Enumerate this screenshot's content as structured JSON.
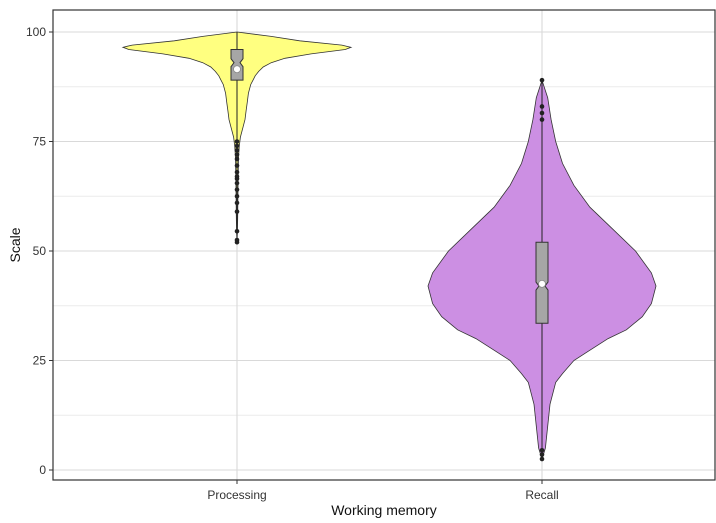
{
  "chart_data": {
    "type": "violin",
    "xlabel": "Working memory",
    "ylabel": "Scale",
    "ylim": [
      0,
      100
    ],
    "y_ticks": [
      "0",
      "25",
      "50",
      "75",
      "100"
    ],
    "grid": true,
    "categories": [
      "Processing",
      "Recall"
    ],
    "series": [
      {
        "category": "Processing",
        "fill_color": "#ffff80",
        "min": 52,
        "max": 100,
        "q1": 89,
        "median": 93,
        "q3": 96,
        "mean": 91.5,
        "outliers": [
          52,
          52.5,
          54.5,
          59,
          61,
          62.5,
          64,
          65.5,
          66.5,
          67,
          68,
          69.5,
          71,
          72,
          73,
          74,
          75
        ],
        "density": [
          [
            100,
            0.0
          ],
          [
            99,
            0.3
          ],
          [
            98,
            0.55
          ],
          [
            97,
            0.92
          ],
          [
            96.5,
            1.0
          ],
          [
            96,
            0.95
          ],
          [
            95,
            0.65
          ],
          [
            94,
            0.42
          ],
          [
            93,
            0.3
          ],
          [
            92,
            0.23
          ],
          [
            91,
            0.19
          ],
          [
            90,
            0.16
          ],
          [
            89,
            0.14
          ],
          [
            88,
            0.12
          ],
          [
            86,
            0.1
          ],
          [
            84,
            0.09
          ],
          [
            82,
            0.08
          ],
          [
            80,
            0.07
          ],
          [
            78,
            0.05
          ],
          [
            76,
            0.03
          ],
          [
            74,
            0.02
          ],
          [
            72,
            0.015
          ],
          [
            70,
            0.012
          ],
          [
            66,
            0.01
          ],
          [
            62,
            0.008
          ],
          [
            58,
            0.006
          ],
          [
            55,
            0.004
          ],
          [
            52,
            0.0
          ]
        ]
      },
      {
        "category": "Recall",
        "fill_color": "#cc8fe3",
        "min": 2.5,
        "max": 89,
        "q1": 33.5,
        "median": 42,
        "q3": 52,
        "mean": 42.5,
        "outliers": [
          2.5,
          3.5,
          4.5,
          80,
          81.5,
          83,
          89
        ],
        "density": [
          [
            89,
            0.0
          ],
          [
            85,
            0.05
          ],
          [
            80,
            0.08
          ],
          [
            75,
            0.12
          ],
          [
            70,
            0.18
          ],
          [
            65,
            0.28
          ],
          [
            60,
            0.42
          ],
          [
            55,
            0.62
          ],
          [
            50,
            0.82
          ],
          [
            45,
            0.96
          ],
          [
            42,
            1.0
          ],
          [
            38,
            0.96
          ],
          [
            35,
            0.88
          ],
          [
            32,
            0.74
          ],
          [
            30,
            0.58
          ],
          [
            27,
            0.4
          ],
          [
            25,
            0.28
          ],
          [
            22,
            0.18
          ],
          [
            20,
            0.12
          ],
          [
            15,
            0.07
          ],
          [
            10,
            0.05
          ],
          [
            5,
            0.03
          ],
          [
            2.5,
            0.0
          ]
        ]
      }
    ]
  }
}
